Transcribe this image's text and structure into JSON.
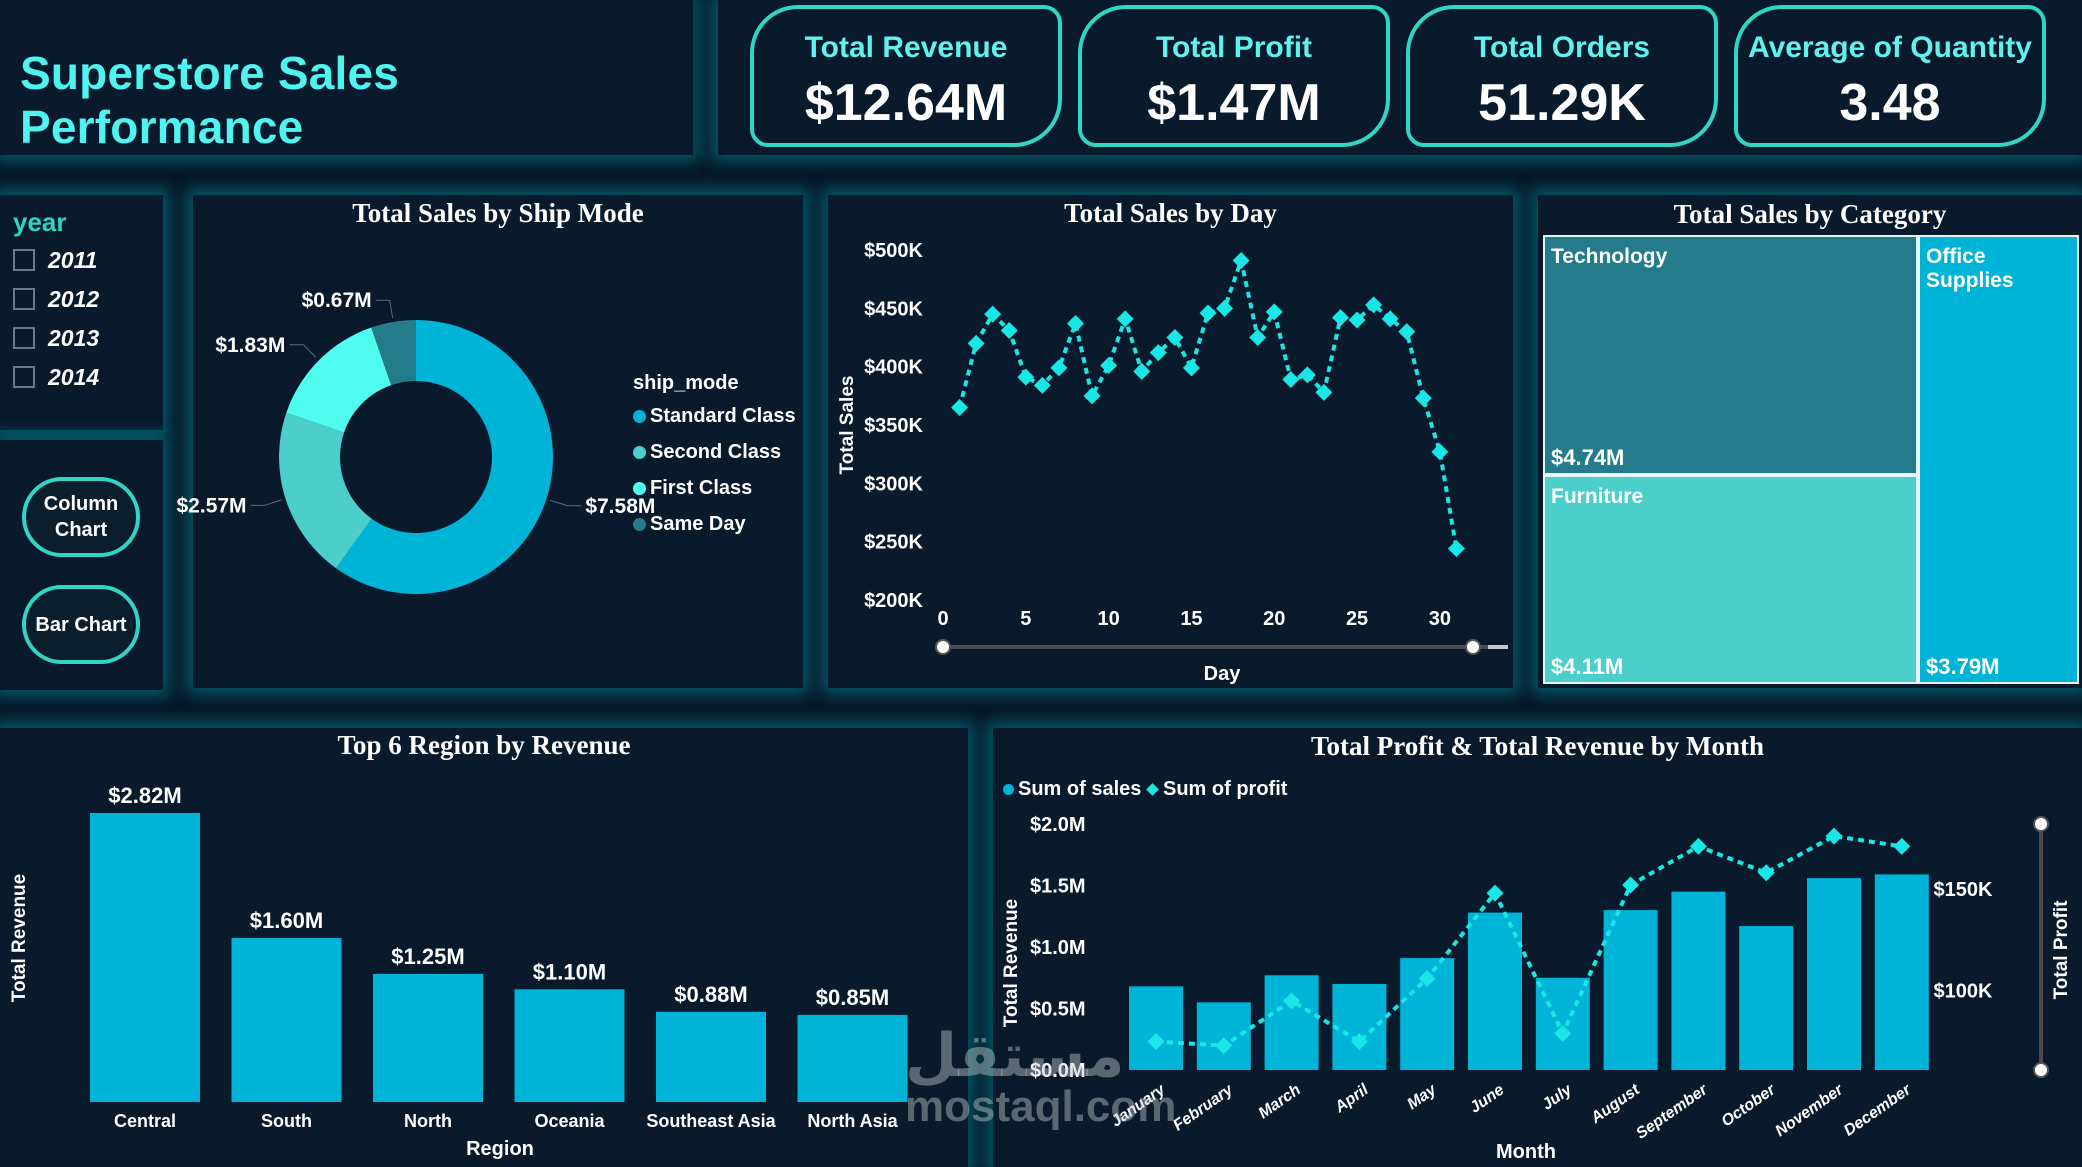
{
  "header": {
    "title": "Superstore Sales Performance"
  },
  "kpis": [
    {
      "label": "Total Revenue",
      "value": "$12.64M"
    },
    {
      "label": "Total Profit",
      "value": "$1.47M"
    },
    {
      "label": "Total Orders",
      "value": "51.29K"
    },
    {
      "label": "Average of Quantity",
      "value": "3.48"
    }
  ],
  "slicer": {
    "title": "year",
    "options": [
      {
        "label": "2011",
        "checked": false
      },
      {
        "label": "2012",
        "checked": false
      },
      {
        "label": "2013",
        "checked": false
      },
      {
        "label": "2014",
        "checked": false
      }
    ]
  },
  "buttons": {
    "column_chart": "Column Chart",
    "bar_chart": "Bar Chart"
  },
  "colors": {
    "accent": "#2fd6c4",
    "title_cyan": "#4ff3f0",
    "bar": "#00b4d8",
    "standard": "#00b4d8",
    "second": "#4ccfcb",
    "first": "#4ffcf0",
    "same_day": "#237b8c",
    "line": "#19e6e6"
  },
  "watermark": {
    "arabic": "مستقل",
    "latin": "mostaql.com"
  },
  "chart_data": [
    {
      "type": "pie",
      "title": "Total Sales by Ship Mode",
      "legend_title": "ship_mode",
      "legend_position": "right",
      "slices": [
        {
          "name": "Standard Class",
          "value": 7.58,
          "label": "$7.58M"
        },
        {
          "name": "Second Class",
          "value": 2.57,
          "label": "$2.57M"
        },
        {
          "name": "First Class",
          "value": 1.83,
          "label": "$1.83M"
        },
        {
          "name": "Same Day",
          "value": 0.67,
          "label": "$0.67M"
        }
      ],
      "units": "$M",
      "donut": true
    },
    {
      "type": "line",
      "title": "Total Sales by Day",
      "xlabel": "Day",
      "ylabel": "Total Sales",
      "x": [
        1,
        2,
        3,
        4,
        5,
        6,
        7,
        8,
        9,
        10,
        11,
        12,
        13,
        14,
        15,
        16,
        17,
        18,
        19,
        20,
        21,
        22,
        23,
        24,
        25,
        26,
        27,
        28,
        29,
        30,
        31
      ],
      "values": [
        365,
        420,
        445,
        431,
        391,
        384,
        399,
        437,
        375,
        401,
        441,
        396,
        412,
        425,
        399,
        446,
        450,
        491,
        425,
        447,
        389,
        393,
        378,
        442,
        440,
        453,
        441,
        430,
        373,
        327,
        244
      ],
      "units": "$K",
      "xlim": [
        0,
        32
      ],
      "ylim": [
        200,
        500
      ],
      "xticks": [
        "0",
        "5",
        "10",
        "15",
        "20",
        "25",
        "30"
      ],
      "yticks": [
        "$200K",
        "$250K",
        "$300K",
        "$350K",
        "$400K",
        "$450K",
        "$500K"
      ],
      "grid": false
    },
    {
      "type": "treemap",
      "title": "Total Sales by Category",
      "items": [
        {
          "name": "Technology",
          "value": 4.74,
          "label": "$4.74M"
        },
        {
          "name": "Furniture",
          "value": 4.11,
          "label": "$4.11M"
        },
        {
          "name": "Office Supplies",
          "value": 3.79,
          "label": "$3.79M"
        }
      ]
    },
    {
      "type": "bar",
      "title": "Top 6 Region by Revenue",
      "xlabel": "Region",
      "ylabel": "Total Revenue",
      "categories": [
        "Central",
        "South",
        "North",
        "Oceania",
        "Southeast Asia",
        "North Asia"
      ],
      "values": [
        2.82,
        1.6,
        1.25,
        1.1,
        0.88,
        0.85
      ],
      "labels": [
        "$2.82M",
        "$1.60M",
        "$1.25M",
        "$1.10M",
        "$0.88M",
        "$0.85M"
      ],
      "ylim": [
        0,
        2.82
      ]
    },
    {
      "type": "bar",
      "title": "Total Profit & Total Revenue by Month",
      "xlabel": "Month",
      "ylabel": "Total Revenue",
      "y2label": "Total Profit",
      "legend_position": "top-left",
      "categories": [
        "January",
        "February",
        "March",
        "April",
        "May",
        "June",
        "July",
        "August",
        "September",
        "October",
        "November",
        "December"
      ],
      "series": [
        {
          "name": "Sum of sales",
          "type": "bar",
          "axis": "left",
          "units": "$M",
          "values": [
            0.68,
            0.55,
            0.77,
            0.7,
            0.91,
            1.28,
            0.75,
            1.3,
            1.45,
            1.17,
            1.56,
            1.59
          ]
        },
        {
          "name": "Sum of profit",
          "type": "line",
          "axis": "right",
          "units": "$K",
          "values": [
            75,
            73,
            95,
            75,
            106,
            148,
            79,
            152,
            171,
            158,
            176,
            171
          ]
        }
      ],
      "ylim": [
        0,
        2.0
      ],
      "y2lim": [
        61,
        181
      ],
      "yticks": [
        "$0.0M",
        "$0.5M",
        "$1.0M",
        "$1.5M",
        "$2.0M"
      ],
      "y2ticks": [
        "$100K",
        "$150K"
      ]
    }
  ]
}
